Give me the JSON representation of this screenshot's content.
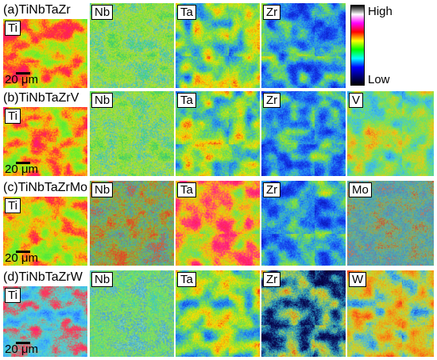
{
  "colorbar": {
    "high_label": "High",
    "low_label": "Low",
    "stops": [
      "#000000",
      "#ffffff",
      "#ff00ff",
      "#ff0000",
      "#ffff00",
      "#00ff00",
      "#00ffff",
      "#0000ff",
      "#00007a",
      "#000000"
    ]
  },
  "scale_label": "20 μm",
  "rows": [
    {
      "title": "(a)TiNbTaZr",
      "elements": [
        "Ti",
        "Nb",
        "Ta",
        "Zr"
      ]
    },
    {
      "title": "(b)TiNbTaZrV",
      "elements": [
        "Ti",
        "Nb",
        "Ta",
        "Zr",
        "V"
      ]
    },
    {
      "title": "(c)TiNbTaZrMo",
      "elements": [
        "Ti",
        "Nb",
        "Ta",
        "Zr",
        "Mo"
      ]
    },
    {
      "title": "(d)TiNbTaZrW",
      "elements": [
        "Ti",
        "Nb",
        "Ta",
        "Zr",
        "W"
      ]
    }
  ]
}
